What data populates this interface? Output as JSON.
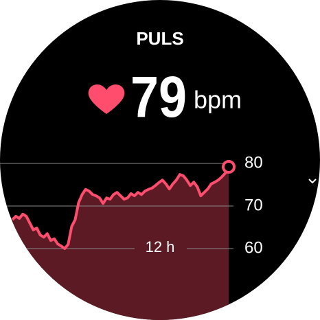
{
  "header": {
    "title": "PULS"
  },
  "reading": {
    "value": "79",
    "unit": "bpm"
  },
  "chart_data": {
    "type": "area",
    "annotation": "12 h",
    "color": "#ff4d6d",
    "fill": "#5c1a24",
    "values": [
      66.8,
      67.6,
      67.1,
      68.1,
      67.6,
      66.0,
      64.4,
      64.8,
      63.2,
      62.7,
      63.5,
      61.9,
      62.3,
      61.1,
      60.6,
      60,
      61,
      65.2,
      66.8,
      70.8,
      72.7,
      73.9,
      73.5,
      72.7,
      72.4,
      71.9,
      70.6,
      71.9,
      71.6,
      72.7,
      73.2,
      72.4,
      71.6,
      71.9,
      72.9,
      72.4,
      73.2,
      72.7,
      73.5,
      73.9,
      74.2,
      74.8,
      75.5,
      76.1,
      75.2,
      74.0,
      75.2,
      76.1,
      77.4,
      77.1,
      76.1,
      74.8,
      75.6,
      74.5,
      72.4,
      73.2,
      74.0,
      75.2,
      75.6,
      76.1,
      76.8,
      77.7,
      79.2
    ],
    "ylim": [
      60,
      80
    ],
    "yticks": [
      60,
      70,
      80
    ],
    "grid": true
  }
}
